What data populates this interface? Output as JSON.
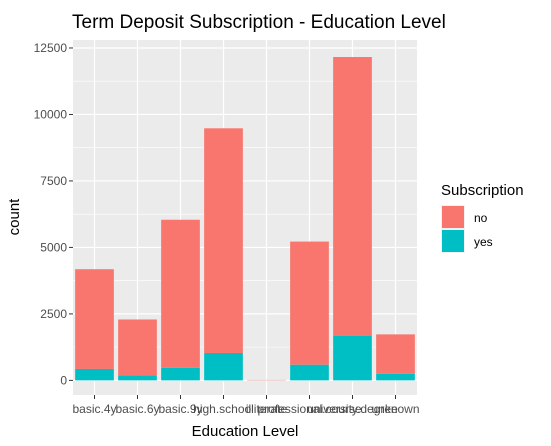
{
  "chart_data": {
    "type": "bar",
    "stacked": true,
    "title": "Term Deposit Subscription - Education Level",
    "xlabel": "Education Level",
    "ylabel": "count",
    "ylim": [
      0,
      12800
    ],
    "yticks": [
      0,
      2500,
      5000,
      7500,
      10000,
      12500
    ],
    "ytick_labels": [
      "0",
      "2500",
      "5000",
      "7500",
      "10000",
      "12500"
    ],
    "categories": [
      "basic.4y",
      "basic.6y",
      "basic.9y",
      "high.school",
      "illiterate",
      "professional.course",
      "university.degree",
      "unknown"
    ],
    "series": [
      {
        "name": "no",
        "color": "#F8766D",
        "values": [
          3750,
          2100,
          5570,
          8450,
          14,
          4630,
          10490,
          1480
        ]
      },
      {
        "name": "yes",
        "color": "#00BFC4",
        "values": [
          430,
          190,
          470,
          1030,
          4,
          590,
          1670,
          250
        ]
      }
    ],
    "legend": {
      "title": "Subscription",
      "placement": "right"
    },
    "grid": true,
    "panel_background": "#EBEBEB"
  }
}
